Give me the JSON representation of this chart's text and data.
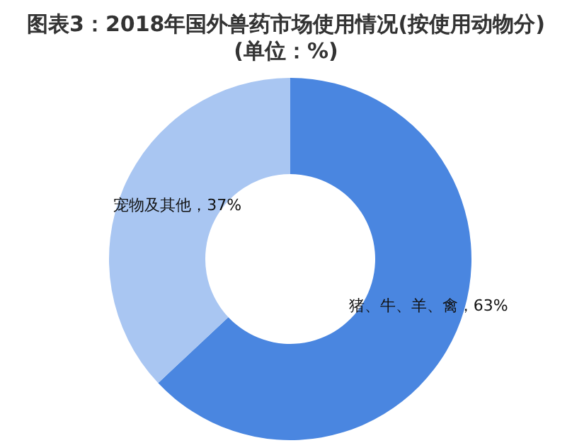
{
  "chart_data": {
    "type": "donut",
    "title": "图表3：2018年国外兽药市场使用情况(按使用动物分)",
    "subtitle": "(单位：%)",
    "categories": [
      "猪、牛、羊、禽",
      "宠物及其他"
    ],
    "values": [
      63,
      37
    ],
    "colors": [
      "#4a86e0",
      "#a9c6f2"
    ],
    "value_labels": [
      "63%",
      "37%"
    ]
  }
}
